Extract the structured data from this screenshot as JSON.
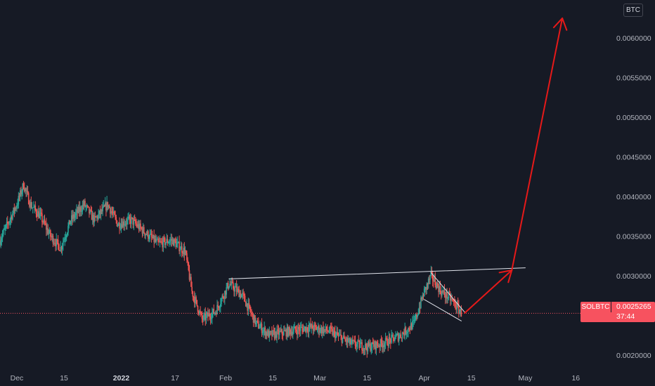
{
  "symbol": "SOLBTC",
  "currency_badge": "BTC",
  "last_price": "0.0025265",
  "countdown": "37:44",
  "colors": {
    "background": "#161a25",
    "up": "#26a69a",
    "down": "#ef5350",
    "trendline": "#e0e3eb",
    "arrow": "#e61919",
    "price_line": "#f7525f"
  },
  "chart_data": {
    "type": "candlestick",
    "y_axis": {
      "ticks": [
        "0.0020000",
        "0.0025000",
        "0.0030000",
        "0.0035000",
        "0.0040000",
        "0.0045000",
        "0.0050000",
        "0.0055000",
        "0.0060000"
      ],
      "tick_values": [
        0.002,
        0.0025,
        0.003,
        0.0035,
        0.004,
        0.0045,
        0.005,
        0.0055,
        0.006
      ],
      "range": [
        0.00183,
        0.00648
      ]
    },
    "x_axis": {
      "ticks": [
        {
          "label": "Dec",
          "date": "2021-12-01",
          "bold": false
        },
        {
          "label": "15",
          "date": "2021-12-15",
          "bold": false
        },
        {
          "label": "2022",
          "date": "2022-01-01",
          "bold": true
        },
        {
          "label": "17",
          "date": "2022-01-17",
          "bold": false
        },
        {
          "label": "Feb",
          "date": "2022-02-01",
          "bold": false
        },
        {
          "label": "15",
          "date": "2022-02-15",
          "bold": false
        },
        {
          "label": "Mar",
          "date": "2022-03-01",
          "bold": false
        },
        {
          "label": "15",
          "date": "2022-03-15",
          "bold": false
        },
        {
          "label": "Apr",
          "date": "2022-04-01",
          "bold": false
        },
        {
          "label": "15",
          "date": "2022-04-15",
          "bold": false
        },
        {
          "label": "May",
          "date": "2022-05-01",
          "bold": false
        },
        {
          "label": "16",
          "date": "2022-05-16",
          "bold": false
        }
      ],
      "range": [
        "2021-11-26",
        "2022-05-27"
      ]
    },
    "price_path": [
      [
        "2021-11-26",
        0.00345
      ],
      [
        "2021-12-01",
        0.0039
      ],
      [
        "2021-12-03",
        0.00415
      ],
      [
        "2021-12-05",
        0.0039
      ],
      [
        "2021-12-08",
        0.00375
      ],
      [
        "2021-12-11",
        0.0035
      ],
      [
        "2021-12-14",
        0.00335
      ],
      [
        "2021-12-17",
        0.0037
      ],
      [
        "2021-12-21",
        0.0039
      ],
      [
        "2021-12-24",
        0.0037
      ],
      [
        "2021-12-28",
        0.0039
      ],
      [
        "2021-12-31",
        0.00365
      ],
      [
        "2022-01-04",
        0.0037
      ],
      [
        "2022-01-08",
        0.00355
      ],
      [
        "2022-01-12",
        0.0034
      ],
      [
        "2022-01-16",
        0.00345
      ],
      [
        "2022-01-20",
        0.0033
      ],
      [
        "2022-01-22",
        0.0028
      ],
      [
        "2022-01-25",
        0.00245
      ],
      [
        "2022-01-29",
        0.00255
      ],
      [
        "2022-02-02",
        0.0029
      ],
      [
        "2022-02-06",
        0.00275
      ],
      [
        "2022-02-10",
        0.0024
      ],
      [
        "2022-02-14",
        0.00225
      ],
      [
        "2022-02-20",
        0.0023
      ],
      [
        "2022-02-26",
        0.00235
      ],
      [
        "2022-03-04",
        0.0023
      ],
      [
        "2022-03-10",
        0.00215
      ],
      [
        "2022-03-15",
        0.0021
      ],
      [
        "2022-03-20",
        0.00215
      ],
      [
        "2022-03-25",
        0.00225
      ],
      [
        "2022-03-29",
        0.0024
      ],
      [
        "2022-04-01",
        0.0028
      ],
      [
        "2022-04-03",
        0.003
      ],
      [
        "2022-04-06",
        0.0028
      ],
      [
        "2022-04-09",
        0.0027
      ],
      [
        "2022-04-12",
        0.00253
      ]
    ],
    "annotations": {
      "resistance_line": [
        [
          "2022-02-02",
          0.00296
        ],
        [
          "2022-05-01",
          0.0031
        ]
      ],
      "wedge_upper": [
        [
          "2022-04-03",
          0.00304
        ],
        [
          "2022-04-13",
          0.00254
        ]
      ],
      "wedge_lower": [
        [
          "2022-04-01",
          0.0027
        ],
        [
          "2022-04-12",
          0.00243
        ]
      ],
      "arrow_1": [
        [
          "2022-04-13",
          0.00253
        ],
        [
          "2022-04-27",
          0.00307
        ]
      ],
      "arrow_2": [
        [
          "2022-04-27",
          0.00307
        ],
        [
          "2022-05-12",
          0.00625
        ]
      ]
    }
  }
}
